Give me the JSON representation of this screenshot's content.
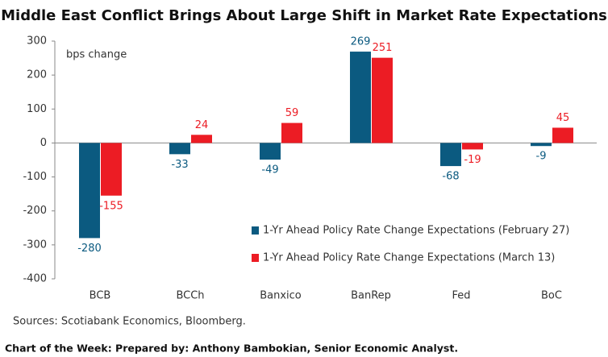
{
  "chart_data": {
    "type": "bar",
    "title": "Middle East Conflict Brings About Large Shift in Market Rate Expectations",
    "y_label": "bps change",
    "categories": [
      "BCB",
      "BCCh",
      "Banxico",
      "BanRep",
      "Fed",
      "BoC"
    ],
    "series": [
      {
        "name": "1-Yr Ahead Policy Rate Change Expectations (February 27)",
        "color": "#0b5a80",
        "values": [
          -280,
          -33,
          -49,
          269,
          -68,
          -9
        ]
      },
      {
        "name": "1-Yr Ahead Policy Rate Change Expectations (March 13)",
        "color": "#ec1c24",
        "values": [
          -155,
          24,
          59,
          251,
          -19,
          45
        ]
      }
    ],
    "ylim": [
      -400,
      300
    ],
    "yticks": [
      -400,
      -300,
      -200,
      -100,
      0,
      100,
      200,
      300
    ],
    "legend": "lower right",
    "data_labels": true,
    "source": "Sources: Scotiabank Economics, Bloomberg.",
    "footer": "Chart of the Week:  Prepared by: Anthony Bambokian, Senior Economic Analyst."
  }
}
